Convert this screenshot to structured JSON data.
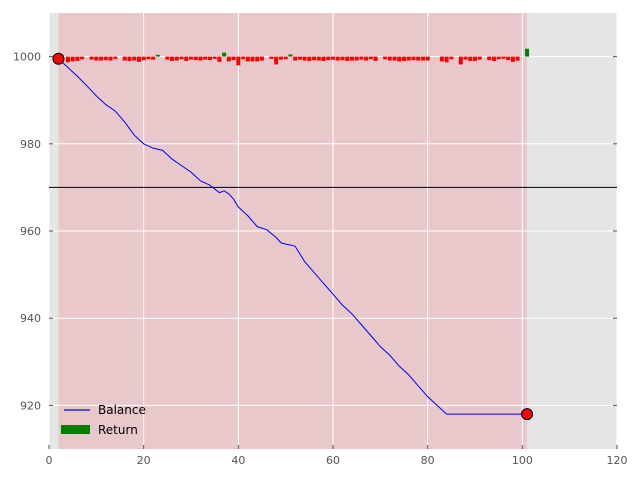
{
  "chart_data": {
    "type": "line",
    "title": "",
    "xlabel": "",
    "ylabel": "",
    "xlim": [
      0,
      120
    ],
    "ylim": [
      910,
      1010
    ],
    "grid": true,
    "x_ticks": [
      0,
      20,
      40,
      60,
      80,
      100,
      120
    ],
    "y_ticks": [
      920,
      940,
      960,
      980,
      1000
    ],
    "shaded_region": {
      "x_start": 2,
      "x_end": 101,
      "color": "#e8c8ca"
    },
    "reference_line": {
      "y": 970,
      "color": "#000000"
    },
    "legend": {
      "position": "bottom-left",
      "entries": [
        {
          "label": "Balance",
          "kind": "line",
          "color": "#0000ff"
        },
        {
          "label": "Return",
          "kind": "bar",
          "color": "#008000"
        }
      ]
    },
    "series": [
      {
        "name": "Balance",
        "color": "#0000ff",
        "x": [
          2,
          4,
          6,
          8,
          10,
          12,
          14,
          16,
          18,
          20,
          22,
          24,
          26,
          28,
          30,
          32,
          34,
          36,
          37,
          38,
          39,
          40,
          41,
          42,
          44,
          46,
          48,
          49,
          50,
          51,
          52,
          54,
          56,
          58,
          60,
          62,
          64,
          66,
          68,
          70,
          72,
          74,
          76,
          78,
          80,
          82,
          84,
          86,
          88,
          90,
          92,
          94,
          96,
          98,
          100,
          101
        ],
        "values": [
          999.5,
          997.5,
          995.5,
          993.3,
          991,
          989,
          987.5,
          985,
          982,
          980,
          979,
          978.5,
          976.5,
          975,
          973.5,
          971.5,
          970.5,
          968.8,
          969.2,
          968.5,
          967.3,
          965.5,
          964.5,
          963.5,
          961,
          960.3,
          958.5,
          957.3,
          957,
          956.8,
          956.5,
          953,
          950.5,
          948,
          945.5,
          943,
          941,
          938.5,
          936,
          933.5,
          931.5,
          929,
          927,
          924.5,
          922,
          920,
          918,
          918,
          918,
          918,
          918,
          918,
          918,
          918,
          918,
          918
        ]
      },
      {
        "name": "Return",
        "kind": "bars",
        "x": [
          4,
          5,
          6,
          7,
          9,
          10,
          11,
          12,
          13,
          14,
          16,
          17,
          18,
          19,
          20,
          21,
          22,
          23,
          25,
          26,
          27,
          28,
          29,
          30,
          31,
          32,
          33,
          34,
          35,
          36,
          37,
          38,
          39,
          40,
          41,
          42,
          43,
          44,
          45,
          47,
          48,
          49,
          50,
          51,
          52,
          53,
          54,
          55,
          56,
          57,
          58,
          59,
          60,
          61,
          62,
          63,
          64,
          65,
          66,
          67,
          68,
          69,
          71,
          72,
          73,
          74,
          75,
          76,
          77,
          78,
          79,
          80,
          83,
          84,
          85,
          87,
          88,
          89,
          90,
          91,
          93,
          94,
          95,
          96,
          97,
          98,
          99,
          101
        ],
        "values": [
          -1.3,
          -1.1,
          -1.0,
          -0.6,
          -0.7,
          -0.9,
          -0.9,
          -0.8,
          -0.9,
          -0.5,
          -0.9,
          -1.0,
          -0.9,
          -1.2,
          -0.8,
          -0.6,
          -0.7,
          0.4,
          -0.7,
          -1.0,
          -0.9,
          -0.6,
          -1.0,
          -0.7,
          -0.8,
          -0.9,
          -0.7,
          -0.8,
          -0.5,
          -1.2,
          0.9,
          -1.1,
          -0.8,
          -2.0,
          -0.6,
          -1.1,
          -1.1,
          -1.1,
          -0.9,
          -0.5,
          -1.8,
          -0.7,
          -0.6,
          0.5,
          -0.9,
          -0.7,
          -0.9,
          -1.0,
          -0.8,
          -0.9,
          -1.0,
          -0.8,
          -0.7,
          -0.9,
          -0.8,
          -1.0,
          -0.9,
          -0.9,
          -0.7,
          -0.9,
          -0.6,
          -1.0,
          -0.6,
          -0.9,
          -0.9,
          -1.1,
          -1.0,
          -0.9,
          -0.8,
          -0.9,
          -0.9,
          -0.9,
          -1.1,
          -1.3,
          -0.6,
          -1.8,
          -0.7,
          -1.0,
          -1.0,
          -0.7,
          -0.8,
          -1.0,
          -0.6,
          -0.5,
          -0.8,
          -1.2,
          -0.9,
          1.8
        ]
      }
    ],
    "markers": [
      {
        "name": "start",
        "x": 2,
        "y": 999.5,
        "color": "#ff0000"
      },
      {
        "name": "end",
        "x": 101,
        "y": 918,
        "color": "#ff0000"
      }
    ]
  }
}
